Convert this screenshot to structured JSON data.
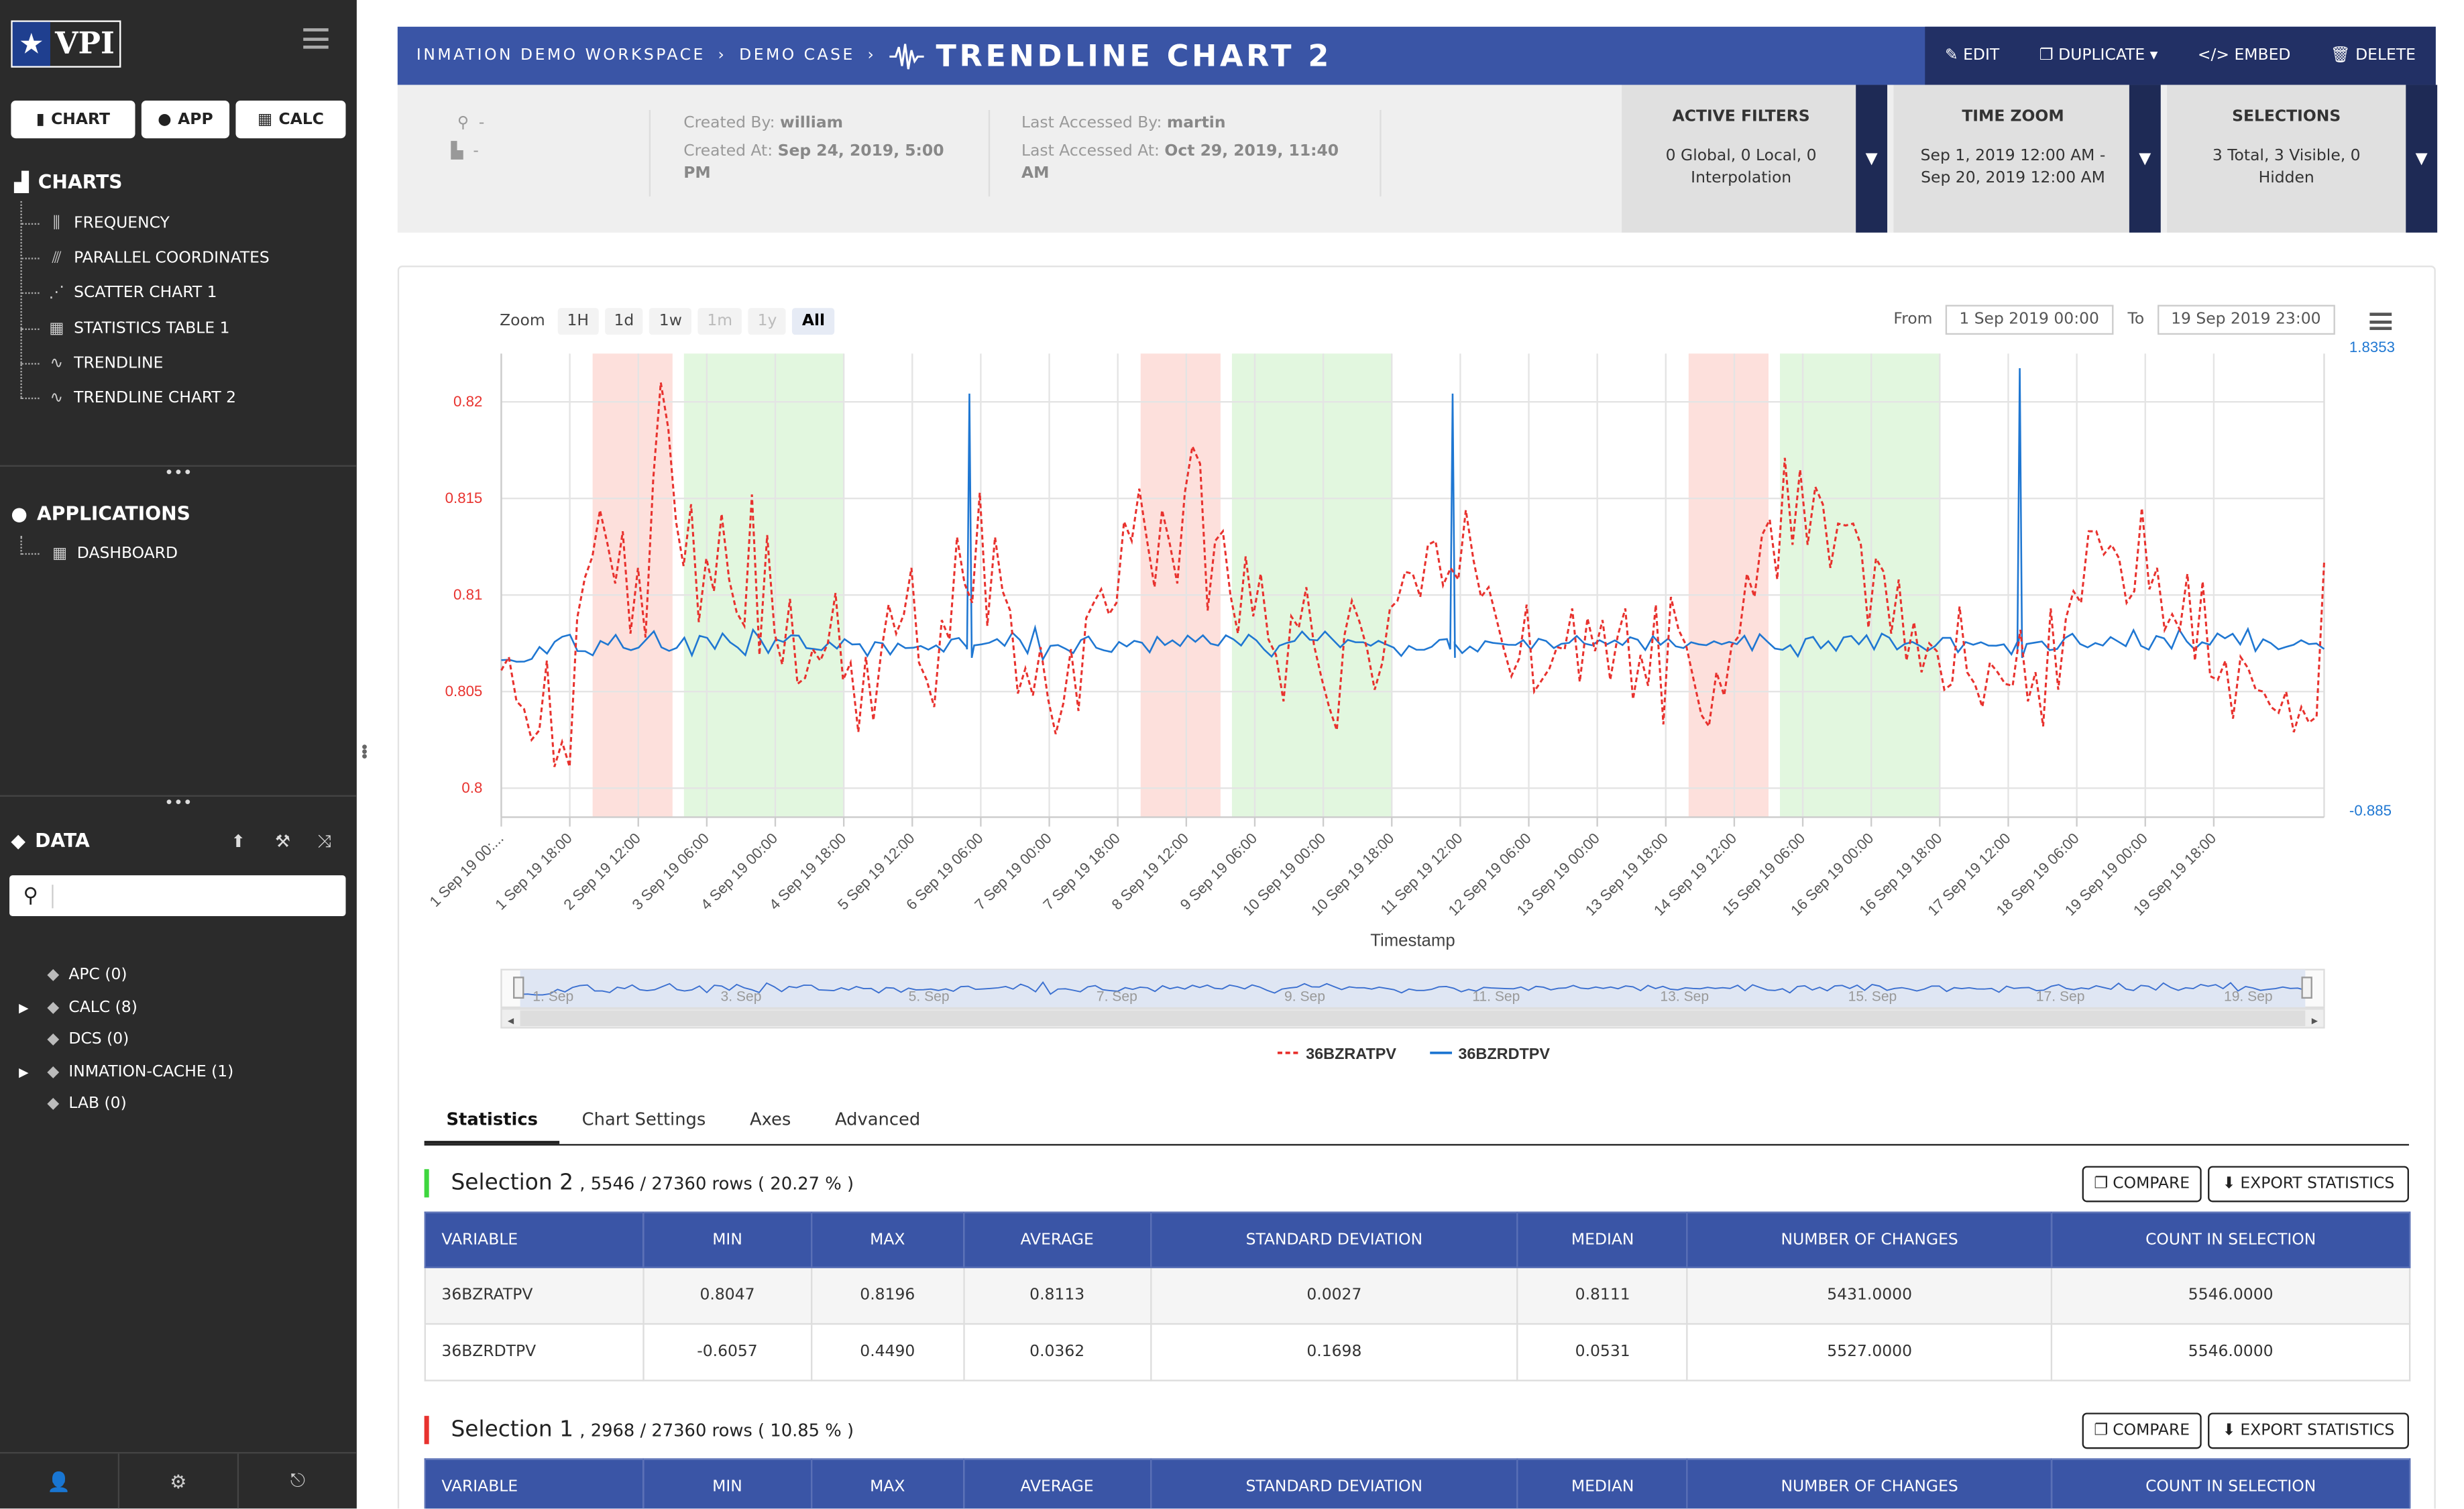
{
  "sidebar": {
    "logo_text": "VPI",
    "quick": [
      "CHART",
      "APP",
      "CALC"
    ],
    "charts_title": "CHARTS",
    "charts": [
      {
        "label": "FREQUENCY",
        "icon": "frequency-icon"
      },
      {
        "label": "PARALLEL COORDINATES",
        "icon": "parallel-icon"
      },
      {
        "label": "SCATTER CHART 1",
        "icon": "scatter-icon"
      },
      {
        "label": "STATISTICS TABLE 1",
        "icon": "table-icon"
      },
      {
        "label": "TRENDLINE",
        "icon": "trendline-icon"
      },
      {
        "label": "TRENDLINE CHART 2",
        "icon": "trendline-icon"
      }
    ],
    "apps_title": "APPLICATIONS",
    "apps": [
      {
        "label": "DASHBOARD",
        "icon": "dashboard-icon"
      }
    ],
    "data_title": "DATA",
    "search_placeholder": "",
    "data_items": [
      {
        "label": "APC (0)",
        "expandable": false
      },
      {
        "label": "CALC (8)",
        "expandable": true
      },
      {
        "label": "DCS (0)",
        "expandable": false
      },
      {
        "label": "INMATION-CACHE (1)",
        "expandable": true
      },
      {
        "label": "LAB (0)",
        "expandable": false
      }
    ]
  },
  "header": {
    "crumbs": [
      "INMATION DEMO WORKSPACE",
      "DEMO CASE"
    ],
    "title": "TRENDLINE CHART 2",
    "actions": [
      "EDIT",
      "DUPLICATE",
      "EMBED",
      "DELETE"
    ]
  },
  "info": {
    "location": "-",
    "plant": "-",
    "created_by_label": "Created By:",
    "created_by": "william",
    "created_at_label": "Created At:",
    "created_at": "Sep 24, 2019, 5:00 PM",
    "accessed_by_label": "Last Accessed By:",
    "accessed_by": "martin",
    "accessed_at_label": "Last Accessed At:",
    "accessed_at": "Oct 29, 2019, 11:40 AM"
  },
  "filters": [
    {
      "title": "ACTIVE FILTERS",
      "value": "0 Global, 0 Local, 0 Interpolation"
    },
    {
      "title": "TIME ZOOM",
      "value": "Sep 1, 2019 12:00 AM - Sep 20, 2019 12:00 AM"
    },
    {
      "title": "SELECTIONS",
      "value": "3 Total, 3 Visible, 0 Hidden"
    }
  ],
  "zoom": {
    "label": "Zoom",
    "buttons": [
      "1H",
      "1d",
      "1w",
      "1m",
      "1y",
      "All"
    ],
    "disabled": [
      "1m",
      "1y"
    ],
    "active": "All"
  },
  "range": {
    "from_label": "From",
    "from": "1 Sep 2019 00:00",
    "to_label": "To",
    "to": "19 Sep 2019 23:00"
  },
  "chart_data": {
    "type": "line",
    "xlabel": "Timestamp",
    "x_ticks": [
      "1 Sep 19 00:...",
      "1 Sep 19 18:00",
      "2 Sep 19 12:00",
      "3 Sep 19 06:00",
      "4 Sep 19 00:00",
      "4 Sep 19 18:00",
      "5 Sep 19 12:00",
      "6 Sep 19 06:00",
      "7 Sep 19 00:00",
      "7 Sep 19 18:00",
      "8 Sep 19 12:00",
      "9 Sep 19 06:00",
      "10 Sep 19 00:00",
      "10 Sep 19 18:00",
      "11 Sep 19 12:00",
      "12 Sep 19 06:00",
      "13 Sep 19 00:00",
      "13 Sep 19 18:00",
      "14 Sep 19 12:00",
      "15 Sep 19 06:00",
      "16 Sep 19 00:00",
      "16 Sep 19 18:00",
      "17 Sep 19 12:00",
      "18 Sep 19 06:00",
      "19 Sep 19 00:00",
      "19 Sep 19 18:00"
    ],
    "y_left": {
      "ticks": [
        "0.82",
        "0.815",
        "0.81",
        "0.805",
        "0.8"
      ],
      "color": "#e8322e"
    },
    "y_right": {
      "top": "1.8353",
      "bottom": "-0.885",
      "color": "#1f77d2"
    },
    "bands": [
      {
        "start": "2 Sep 19 00:00",
        "end": "2 Sep 19 21:00",
        "color": "#fde0dc"
      },
      {
        "start": "3 Sep 19 00:00",
        "end": "4 Sep 19 18:00",
        "color": "#e2f7df"
      },
      {
        "start": "8 Sep 19 00:00",
        "end": "8 Sep 19 21:00",
        "color": "#fde0dc"
      },
      {
        "start": "9 Sep 19 00:00",
        "end": "10 Sep 19 18:00",
        "color": "#e2f7df"
      },
      {
        "start": "14 Sep 19 00:00",
        "end": "14 Sep 19 21:00",
        "color": "#fde0dc"
      },
      {
        "start": "15 Sep 19 00:00",
        "end": "16 Sep 19 18:00",
        "color": "#e2f7df"
      }
    ],
    "series": [
      {
        "name": "36BZRATPV",
        "color": "#e8322e",
        "dash": true,
        "values": [
          0.8061,
          0.8068,
          0.8045,
          0.8041,
          0.8025,
          0.803,
          0.8066,
          0.8011,
          0.8024,
          0.8011,
          0.8088,
          0.8109,
          0.812,
          0.8144,
          0.8126,
          0.8106,
          0.8133,
          0.808,
          0.8114,
          0.8078,
          0.816,
          0.821,
          0.8186,
          0.8138,
          0.8115,
          0.8147,
          0.8086,
          0.8119,
          0.8102,
          0.8142,
          0.8108,
          0.8091,
          0.8084,
          0.8152,
          0.8069,
          0.8131,
          0.808,
          0.8064,
          0.8098,
          0.8054,
          0.8057,
          0.8072,
          0.8066,
          0.8075,
          0.8101,
          0.8056,
          0.8065,
          0.8029,
          0.8068,
          0.8035,
          0.807,
          0.8095,
          0.808,
          0.809,
          0.8114,
          0.8065,
          0.8056,
          0.8042,
          0.8087,
          0.8077,
          0.813,
          0.8106,
          0.8096,
          0.8153,
          0.8084,
          0.813,
          0.8102,
          0.8092,
          0.8049,
          0.8062,
          0.8048,
          0.8073,
          0.8046,
          0.8028,
          0.8044,
          0.8072,
          0.804,
          0.8088,
          0.8096,
          0.8103,
          0.809,
          0.8096,
          0.8138,
          0.8128,
          0.8155,
          0.8129,
          0.8104,
          0.8144,
          0.8127,
          0.8106,
          0.8153,
          0.8177,
          0.8168,
          0.8092,
          0.8128,
          0.8133,
          0.81,
          0.808,
          0.812,
          0.8089,
          0.8111,
          0.8077,
          0.8069,
          0.8045,
          0.8089,
          0.8083,
          0.8104,
          0.8074,
          0.8057,
          0.8042,
          0.803,
          0.8079,
          0.8097,
          0.8086,
          0.8072,
          0.8051,
          0.8065,
          0.8093,
          0.8097,
          0.8112,
          0.8111,
          0.8099,
          0.8126,
          0.8128,
          0.8105,
          0.8114,
          0.8108,
          0.8144,
          0.8118,
          0.8099,
          0.8104,
          0.8088,
          0.8072,
          0.8058,
          0.8067,
          0.8095,
          0.805,
          0.8056,
          0.8062,
          0.8073,
          0.8072,
          0.8093,
          0.8055,
          0.8088,
          0.8071,
          0.8087,
          0.8056,
          0.8079,
          0.8093,
          0.8046,
          0.8069,
          0.8053,
          0.8095,
          0.8033,
          0.8099,
          0.8082,
          0.8074,
          0.8056,
          0.8038,
          0.8032,
          0.806,
          0.8048,
          0.8074,
          0.8079,
          0.8111,
          0.8099,
          0.8131,
          0.8139,
          0.8108,
          0.8171,
          0.8126,
          0.8165,
          0.8126,
          0.8156,
          0.8147,
          0.8114,
          0.8137,
          0.8136,
          0.8137,
          0.8126,
          0.8083,
          0.8119,
          0.8112,
          0.808,
          0.8108,
          0.8066,
          0.8086,
          0.806,
          0.8075,
          0.8071,
          0.8051,
          0.8054,
          0.8094,
          0.806,
          0.8054,
          0.8042,
          0.8065,
          0.806,
          0.8054,
          0.8053,
          0.8082,
          0.8045,
          0.806,
          0.8032,
          0.8093,
          0.8051,
          0.8088,
          0.8102,
          0.8096,
          0.8133,
          0.8133,
          0.8121,
          0.8126,
          0.8119,
          0.8096,
          0.8102,
          0.8145,
          0.8103,
          0.8114,
          0.8082,
          0.809,
          0.8082,
          0.8111,
          0.8066,
          0.8107,
          0.8058,
          0.8056,
          0.8066,
          0.8036,
          0.8068,
          0.8062,
          0.8051,
          0.805,
          0.8042,
          0.8039,
          0.805,
          0.8029,
          0.8042,
          0.8034,
          0.8037,
          0.8117
        ]
      },
      {
        "name": "36BZRDTPV",
        "color": "#1f77d2",
        "dash": false,
        "values": [
          0.036,
          0.039,
          0.027,
          0.028,
          0.044,
          0.114,
          0.075,
          0.144,
          0.174,
          0.186,
          0.09,
          0.089,
          0.065,
          0.149,
          0.127,
          0.185,
          0.109,
          0.095,
          0.11,
          0.157,
          0.206,
          0.112,
          0.091,
          0.108,
          0.168,
          0.065,
          0.179,
          0.167,
          0.103,
          0.193,
          0.141,
          0.11,
          0.066,
          0.214,
          0.157,
          0.079,
          0.159,
          0.143,
          0.182,
          0.18,
          0.107,
          0.102,
          0.095,
          0.141,
          0.104,
          0.16,
          0.128,
          0.13,
          0.061,
          0.142,
          0.135,
          0.069,
          0.134,
          0.107,
          0.109,
          0.119,
          0.098,
          0.123,
          0.086,
          0.157,
          0.166,
          0.114,
          0.123,
          0.129,
          0.139,
          0.16,
          0.12,
          0.198,
          0.155,
          0.077,
          0.227,
          0.04,
          0.12,
          0.125,
          0.103,
          0.078,
          0.154,
          0.175,
          0.109,
          0.094,
          0.084,
          0.143,
          0.116,
          0.15,
          0.139,
          0.082,
          0.173,
          0.125,
          0.152,
          0.119,
          0.18,
          0.144,
          0.182,
          0.133,
          0.122,
          0.182,
          0.159,
          0.122,
          0.186,
          0.152,
          0.099,
          0.057,
          0.121,
          0.138,
          0.149,
          0.204,
          0.156,
          0.152,
          0.204,
          0.158,
          0.112,
          0.155,
          0.141,
          0.141,
          0.121,
          0.15,
          0.129,
          0.11,
          0.061,
          0.12,
          0.097,
          0.097,
          0.115,
          0.155,
          0.16,
          0.132,
          0.078,
          0.116,
          0.087,
          0.148,
          0.138,
          0.133,
          0.127,
          0.126,
          0.153,
          0.1,
          0.162,
          0.149,
          0.107,
          0.132,
          0.138,
          0.178,
          0.134,
          0.124,
          0.153,
          0.129,
          0.152,
          0.125,
          0.171,
          0.156,
          0.096,
          0.177,
          0.127,
          0.163,
          0.117,
          0.107,
          0.141,
          0.129,
          0.124,
          0.147,
          0.129,
          0.143,
          0.13,
          0.179,
          0.094,
          0.188,
          0.145,
          0.104,
          0.097,
          0.125,
          0.059,
          0.161,
          0.173,
          0.105,
          0.148,
          0.092,
          0.17,
          0.178,
          0.129,
          0.182,
          0.1,
          0.192,
          0.168,
          0.099,
          0.131,
          0.143,
          0.12,
          0.091,
          0.119,
          0.167,
          0.167,
          0.083,
          0.142,
          0.127,
          0.141,
          0.122,
          0.121,
          0.129,
          0.07,
          0.165,
          0.131,
          0.139,
          0.146,
          0.095,
          0.102,
          0.165,
          0.191,
          0.131,
          0.111,
          0.137,
          0.122,
          0.172,
          0.145,
          0.118,
          0.212,
          0.12,
          0.098,
          0.178,
          0.164,
          0.104,
          0.215,
          0.146,
          0.1,
          0.141,
          0.127,
          0.193,
          0.164,
          0.191,
          0.128,
          0.219,
          0.09,
          0.159,
          0.137,
          0.1,
          0.114,
          0.127,
          0.153,
          0.13,
          0.134,
          0.102
        ]
      }
    ],
    "spikes": [
      {
        "series": "36BZRDTPV",
        "x": "6 Sep 19 03:00",
        "value": 1.6
      },
      {
        "series": "36BZRDTPV",
        "x": "11 Sep 19 10:00",
        "value": 1.6
      },
      {
        "series": "36BZRDTPV",
        "x": "17 Sep 19 15:00",
        "value": 1.75
      }
    ],
    "navigator_ticks": [
      "1. Sep",
      "3. Sep",
      "5. Sep",
      "7. Sep",
      "9. Sep",
      "11. Sep",
      "13. Sep",
      "15. Sep",
      "17. Sep",
      "19. Sep"
    ]
  },
  "tabs": {
    "items": [
      "Statistics",
      "Chart Settings",
      "Axes",
      "Advanced"
    ],
    "active": "Statistics"
  },
  "stats_columns": [
    "VARIABLE",
    "MIN",
    "MAX",
    "AVERAGE",
    "STANDARD DEVIATION",
    "MEDIAN",
    "NUMBER OF CHANGES",
    "COUNT IN SELECTION"
  ],
  "selections": [
    {
      "name": "Selection 2",
      "rows_text": ", 5546 / 27360 rows ( 20.27 % )",
      "color": "#3ed63e",
      "rows": [
        [
          "36BZRATPV",
          "0.8047",
          "0.8196",
          "0.8113",
          "0.0027",
          "0.8111",
          "5431.0000",
          "5546.0000"
        ],
        [
          "36BZRDTPV",
          "-0.6057",
          "0.4490",
          "0.0362",
          "0.1698",
          "0.0531",
          "5527.0000",
          "5546.0000"
        ]
      ]
    },
    {
      "name": "Selection 1",
      "rows_text": ", 2968 / 27360 rows ( 10.85 % )",
      "color": "#e8322e",
      "rows": []
    }
  ],
  "buttons": {
    "compare": "COMPARE",
    "export": "EXPORT STATISTICS"
  }
}
